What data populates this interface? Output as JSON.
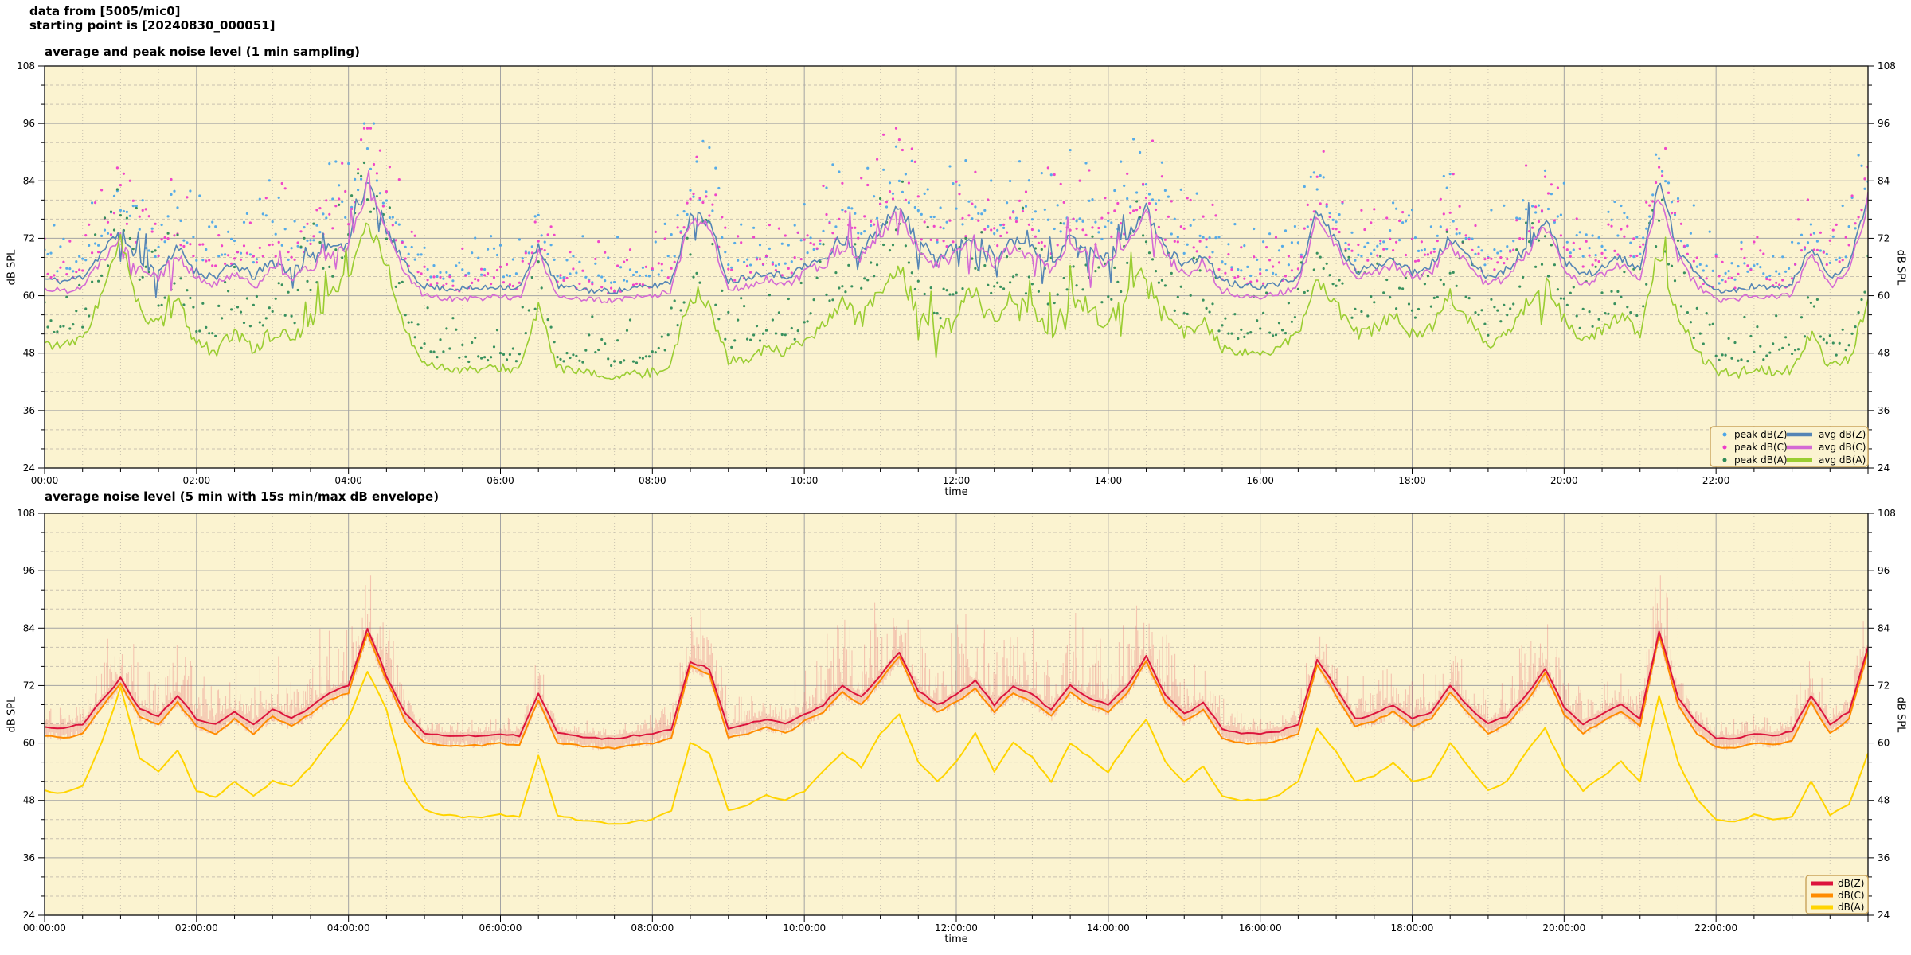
{
  "header": {
    "line1": "data from [5005/mic0]",
    "line2": "starting point is [20240830_000051]"
  },
  "colors": {
    "plot_bg": "#fbf3d0",
    "page_bg": "#ffffff",
    "grid_major": "#a3a3a3",
    "grid_minor": "#c9c2b0",
    "axis_border": "#1a1a1a",
    "text": "#000000",
    "legend_border": "#c9a35b",
    "peak_dbz": "#4da6e8",
    "peak_dbc": "#ee3cc8",
    "peak_dba": "#2e8b57",
    "avg_dbz": "#5585b5",
    "avg_dbc": "#d46ad4",
    "avg_dba": "#9acd32",
    "dbz": "#dc143c",
    "dbc": "#ff8c00",
    "dba": "#ffd400",
    "envelope": "rgba(228,90,100,0.30)"
  },
  "chart_data": [
    {
      "type": "line",
      "subtype": "averages-with-peak-scatter",
      "title": "average and peak noise level (1 min sampling)",
      "xlabel": "time",
      "ylabel": "dB SPL",
      "ylim": [
        24,
        108
      ],
      "ytick_major_db": 12,
      "ytick_minor_db": 4,
      "x_unit": "hours",
      "x_range_h": [
        0,
        24
      ],
      "xtick_major_h": 2,
      "xtick_minor_h": 0.5,
      "xtick_labels": [
        "00:00",
        "02:00",
        "04:00",
        "06:00",
        "08:00",
        "10:00",
        "12:00",
        "14:00",
        "16:00",
        "18:00",
        "20:00",
        "22:00"
      ],
      "legend": {
        "scatter": [
          "peak dB(Z)",
          "peak dB(C)",
          "peak dB(A)"
        ],
        "lines": [
          "avg dB(Z)",
          "avg dB(C)",
          "avg dB(A)"
        ]
      },
      "sample_step_h": 0.25,
      "series": {
        "avg_dbz": [
          63.5,
          63,
          64,
          69,
          73.5,
          67,
          65.5,
          70,
          65,
          64,
          66.5,
          64,
          67,
          65,
          67.5,
          70.5,
          72,
          84,
          74,
          66,
          62,
          61.5,
          61.5,
          61.5,
          62,
          61.5,
          70.5,
          62,
          61.5,
          61,
          61,
          61.5,
          62,
          63,
          77,
          75.5,
          63,
          64,
          65,
          64,
          66,
          68,
          72,
          69.5,
          74,
          79,
          71,
          68,
          70,
          73,
          68,
          72,
          70,
          67,
          72,
          69.5,
          68,
          72,
          78,
          70,
          66,
          68.5,
          63,
          62,
          62,
          62.5,
          64,
          77.5,
          71.5,
          65,
          66,
          68,
          65,
          66.5,
          72,
          67.5,
          64,
          65.5,
          70,
          75.5,
          67.5,
          64,
          66,
          68,
          65,
          83.5,
          69.5,
          64,
          61,
          61,
          62,
          61.5,
          62.5,
          70,
          64,
          66.5,
          80
        ],
        "avg_dbc": [
          61.5,
          61,
          62,
          67.5,
          72.5,
          65.5,
          64,
          68.5,
          63.5,
          62,
          65,
          62,
          65.5,
          63.5,
          66,
          69,
          70.5,
          83,
          73,
          64.5,
          60,
          59.5,
          59.5,
          59.5,
          60,
          59.5,
          69,
          60,
          59.5,
          59,
          59,
          59.5,
          60,
          61,
          76,
          74.5,
          61,
          62,
          63.5,
          62,
          64.5,
          66.5,
          70.5,
          68,
          73,
          78,
          69.5,
          66.5,
          68.5,
          71.5,
          66.5,
          70.5,
          68.5,
          65.5,
          70.5,
          68,
          66.5,
          70.5,
          77,
          68.5,
          64.5,
          67,
          61,
          60,
          60,
          60.5,
          62,
          76.5,
          70,
          63.5,
          64.5,
          66.5,
          63.5,
          65,
          70.5,
          66,
          62,
          64,
          68.5,
          74.5,
          66,
          62,
          64.5,
          66.5,
          63.5,
          82.5,
          68,
          62,
          59,
          59,
          60,
          59.5,
          60.5,
          68.5,
          62,
          65,
          79
        ],
        "avg_dba": [
          50,
          49.5,
          51,
          60,
          71.5,
          57,
          54,
          58.5,
          50,
          48.5,
          52,
          49,
          52,
          51,
          55,
          60,
          65,
          75,
          67,
          52,
          46,
          45,
          44.5,
          44.5,
          45,
          44.5,
          57.5,
          45,
          44,
          43.5,
          43,
          43.5,
          44,
          46,
          60,
          58,
          46,
          47,
          49,
          48,
          50,
          54,
          58,
          55,
          62,
          66,
          56,
          52,
          56,
          62,
          54,
          60,
          57,
          52,
          60,
          57,
          54,
          60,
          65,
          56,
          52,
          55,
          49,
          48,
          48,
          49,
          52,
          63,
          58,
          52,
          53,
          56,
          52,
          53,
          60,
          55,
          50,
          52,
          58,
          63,
          55,
          50,
          53,
          56,
          52,
          70,
          56,
          48,
          44,
          43.5,
          45,
          44,
          44.5,
          52,
          45,
          47,
          58
        ]
      }
    },
    {
      "type": "line",
      "subtype": "averages-with-minmax-envelope",
      "title": "average noise level (5 min with 15s min/max dB envelope)",
      "xlabel": "time",
      "ylabel": "dB SPL",
      "ylim": [
        24,
        108
      ],
      "ytick_major_db": 12,
      "ytick_minor_db": 4,
      "x_unit": "hours",
      "x_range_h": [
        0,
        24
      ],
      "xtick_major_h": 2,
      "xtick_minor_h": 0.5,
      "xtick_labels": [
        "00:00:00",
        "02:00:00",
        "04:00:00",
        "06:00:00",
        "08:00:00",
        "10:00:00",
        "12:00:00",
        "14:00:00",
        "16:00:00",
        "18:00:00",
        "20:00:00",
        "22:00:00"
      ],
      "legend": {
        "lines": [
          "dB(Z)",
          "dB(C)",
          "dB(A)"
        ]
      },
      "sample_step_h": 0.25,
      "series": {
        "dbz": [
          63.5,
          63,
          64,
          69,
          73.5,
          67,
          65.5,
          70,
          65,
          64,
          66.5,
          64,
          67,
          65,
          67.5,
          70.5,
          72,
          84,
          74,
          66,
          62,
          61.5,
          61.5,
          61.5,
          62,
          61.5,
          70.5,
          62,
          61.5,
          61,
          61,
          61.5,
          62,
          63,
          77,
          75.5,
          63,
          64,
          65,
          64,
          66,
          68,
          72,
          69.5,
          74,
          79,
          71,
          68,
          70,
          73,
          68,
          72,
          70,
          67,
          72,
          69.5,
          68,
          72,
          78,
          70,
          66,
          68.5,
          63,
          62,
          62,
          62.5,
          64,
          77.5,
          71.5,
          65,
          66,
          68,
          65,
          66.5,
          72,
          67.5,
          64,
          65.5,
          70,
          75.5,
          67.5,
          64,
          66,
          68,
          65,
          83.5,
          69.5,
          64,
          61,
          61,
          62,
          61.5,
          62.5,
          70,
          64,
          66.5,
          80
        ],
        "dbc": [
          61.5,
          61,
          62,
          67.5,
          72.5,
          65.5,
          64,
          68.5,
          63.5,
          62,
          65,
          62,
          65.5,
          63.5,
          66,
          69,
          70.5,
          83,
          73,
          64.5,
          60,
          59.5,
          59.5,
          59.5,
          60,
          59.5,
          69,
          60,
          59.5,
          59,
          59,
          59.5,
          60,
          61,
          76,
          74.5,
          61,
          62,
          63.5,
          62,
          64.5,
          66.5,
          70.5,
          68,
          73,
          78,
          69.5,
          66.5,
          68.5,
          71.5,
          66.5,
          70.5,
          68.5,
          65.5,
          70.5,
          68,
          66.5,
          70.5,
          77,
          68.5,
          64.5,
          67,
          61,
          60,
          60,
          60.5,
          62,
          76.5,
          70,
          63.5,
          64.5,
          66.5,
          63.5,
          65,
          70.5,
          66,
          62,
          64,
          68.5,
          74.5,
          66,
          62,
          64.5,
          66.5,
          63.5,
          82.5,
          68,
          62,
          59,
          59,
          60,
          59.5,
          60.5,
          68.5,
          62,
          65,
          79
        ],
        "dba": [
          50,
          49.5,
          51,
          60,
          71.5,
          57,
          54,
          58.5,
          50,
          48.5,
          52,
          49,
          52,
          51,
          55,
          60,
          65,
          75,
          67,
          52,
          46,
          45,
          44.5,
          44.5,
          45,
          44.5,
          57.5,
          45,
          44,
          43.5,
          43,
          43.5,
          44,
          46,
          60,
          58,
          46,
          47,
          49,
          48,
          50,
          54,
          58,
          55,
          62,
          66,
          56,
          52,
          56,
          62,
          54,
          60,
          57,
          52,
          60,
          57,
          54,
          60,
          65,
          56,
          52,
          55,
          49,
          48,
          48,
          49,
          52,
          63,
          58,
          52,
          53,
          56,
          52,
          53,
          60,
          55,
          50,
          52,
          58,
          63,
          55,
          50,
          53,
          56,
          52,
          70,
          56,
          48,
          44,
          43.5,
          45,
          44,
          44.5,
          52,
          45,
          47,
          58
        ]
      },
      "envelope_up_db": [
        4,
        4,
        5,
        10,
        12,
        12,
        12,
        12,
        9,
        9,
        9,
        9,
        12,
        12,
        14,
        15,
        15,
        15,
        12,
        10,
        4,
        3,
        3,
        3,
        3,
        3,
        8,
        3,
        3,
        3,
        3,
        3,
        4,
        8,
        12,
        12,
        6,
        5,
        5,
        5,
        10,
        14,
        16,
        16,
        16,
        16,
        16,
        14,
        16,
        16,
        14,
        16,
        16,
        14,
        16,
        14,
        14,
        16,
        16,
        14,
        10,
        10,
        6,
        5,
        5,
        5,
        6,
        12,
        10,
        8,
        8,
        8,
        8,
        8,
        10,
        8,
        6,
        8,
        12,
        12,
        8,
        7,
        7,
        7,
        7,
        15,
        10,
        5,
        4,
        4,
        4,
        4,
        4,
        10,
        5,
        6,
        12
      ]
    }
  ]
}
